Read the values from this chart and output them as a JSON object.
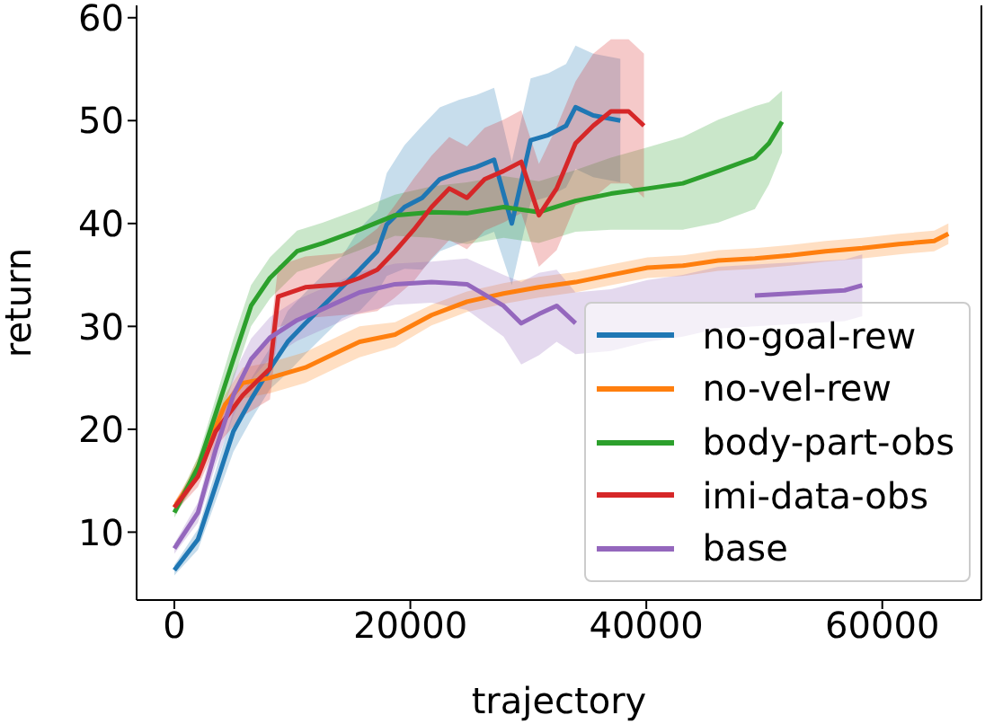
{
  "chart_data": {
    "type": "line",
    "xlabel": "trajectory",
    "ylabel": "return",
    "xlim": [
      -3200,
      68400
    ],
    "ylim": [
      3.4,
      61.2
    ],
    "xticks": [
      0,
      20000,
      40000,
      60000
    ],
    "yticks": [
      10,
      20,
      30,
      40,
      50,
      60
    ],
    "grid": false,
    "legend": "bottom right",
    "marker": "none",
    "line_style": "solid",
    "series": [
      {
        "name": "no-goal-rew",
        "color": "#1f77b4",
        "x": [
          0,
          2000,
          3500,
          5000,
          6500,
          8100,
          9600,
          11100,
          12600,
          14200,
          15700,
          17200,
          18000,
          19500,
          21000,
          22500,
          24100,
          25600,
          27100,
          28600,
          30200,
          31700,
          33200,
          34000,
          35500,
          37800
        ],
        "values": [
          6.3,
          9.3,
          14.5,
          19.8,
          22.9,
          25.9,
          28.5,
          30.3,
          32,
          33.8,
          35.5,
          37.3,
          39.9,
          41.6,
          42.5,
          44.3,
          45,
          45.5,
          46.2,
          40,
          48.1,
          48.6,
          49.5,
          51.3,
          50.5,
          50
        ],
        "lower": [
          5.8,
          8.3,
          13,
          17.8,
          20.9,
          23.9,
          25.5,
          27.3,
          29,
          30.8,
          31.5,
          33.3,
          34.9,
          35.6,
          35.5,
          37.3,
          38,
          38.5,
          39.2,
          34,
          42.1,
          42.6,
          43.5,
          45.3,
          44.5,
          44
        ],
        "upper": [
          6.8,
          10.3,
          16,
          21.8,
          24.9,
          27.9,
          31.5,
          33.3,
          35,
          36.8,
          39.5,
          41.3,
          44.9,
          47.6,
          49.5,
          51.3,
          52,
          52.5,
          53.2,
          46,
          54.1,
          54.6,
          55.5,
          57.3,
          56.5,
          56
        ]
      },
      {
        "name": "no-vel-rew",
        "color": "#ff7f0e",
        "x": [
          0,
          1200,
          2700,
          4300,
          5800,
          8100,
          11100,
          14200,
          15700,
          18700,
          21800,
          24800,
          27900,
          30900,
          34000,
          37000,
          40100,
          43100,
          46100,
          49200,
          52200,
          55200,
          58300,
          61400,
          64400,
          65600
        ],
        "values": [
          12.4,
          14.5,
          18,
          22.4,
          24.5,
          25,
          26,
          27.7,
          28.5,
          29.2,
          31.1,
          32.4,
          33.2,
          33.8,
          34.3,
          35,
          35.7,
          35.9,
          36.4,
          36.6,
          36.9,
          37.3,
          37.6,
          38,
          38.3,
          39
        ],
        "lower": [
          11.9,
          13.7,
          17,
          21.4,
          23,
          23.5,
          24.5,
          26.2,
          27,
          28,
          30.1,
          31.4,
          32.2,
          32.8,
          33.3,
          34,
          34.7,
          34.9,
          35.4,
          35.6,
          35.9,
          36.3,
          36.6,
          37,
          37.3,
          38
        ],
        "upper": [
          12.9,
          15.3,
          19,
          23.4,
          26,
          26.5,
          27.5,
          29.2,
          30,
          30.4,
          32.1,
          33.4,
          34.2,
          34.8,
          35.3,
          36,
          36.7,
          36.9,
          37.4,
          37.6,
          37.9,
          38.3,
          38.6,
          39,
          39.3,
          40
        ]
      },
      {
        "name": "body-part-obs",
        "color": "#2ca02c",
        "x": [
          0,
          2000,
          3500,
          5000,
          6500,
          8100,
          10400,
          12600,
          15700,
          18700,
          21800,
          24800,
          27900,
          30900,
          34000,
          37000,
          40100,
          43100,
          46100,
          49200,
          50400,
          51500
        ],
        "values": [
          11.9,
          16.3,
          21.5,
          26.8,
          32,
          34.7,
          37.3,
          38.1,
          39.4,
          40.8,
          41.1,
          41,
          41.6,
          41.1,
          42.2,
          42.9,
          43.4,
          43.9,
          45.1,
          46.4,
          47.8,
          49.9
        ],
        "lower": [
          11.4,
          15.3,
          20,
          24.8,
          30,
          32.7,
          35.3,
          36.1,
          37.4,
          38.8,
          38.6,
          38,
          38.6,
          38.1,
          39.2,
          39.4,
          39.4,
          39.4,
          40.1,
          41.4,
          43.8,
          46.9
        ],
        "upper": [
          12.4,
          17.3,
          23,
          28.8,
          34,
          36.7,
          39.3,
          40.1,
          41.4,
          42.8,
          43.6,
          44,
          44.6,
          44.1,
          45.2,
          46.4,
          47.4,
          48.4,
          50.1,
          51.4,
          51.8,
          52.9
        ]
      },
      {
        "name": "imi-data-obs",
        "color": "#d62728",
        "x": [
          0,
          2000,
          3500,
          5800,
          8100,
          8800,
          11100,
          14200,
          15700,
          17200,
          18700,
          20300,
          21800,
          23300,
          24800,
          26300,
          27900,
          29400,
          30900,
          32400,
          34000,
          35500,
          37000,
          38500,
          39800
        ],
        "values": [
          12.4,
          15.4,
          19.8,
          23.3,
          25.9,
          32.9,
          33.8,
          34.1,
          34.7,
          35.5,
          37.3,
          39.4,
          41.6,
          43.4,
          42.5,
          44.3,
          45.1,
          46,
          40.8,
          43.4,
          47.8,
          49.5,
          50.9,
          50.9,
          49.5
        ],
        "lower": [
          11.9,
          14.4,
          18.3,
          21.3,
          22.9,
          29.9,
          30.8,
          31.1,
          31.2,
          31.5,
          32.8,
          34.4,
          36.6,
          38.4,
          37.5,
          39.3,
          40.1,
          41,
          35.8,
          37.4,
          41.8,
          42.5,
          43.9,
          43.9,
          42.5
        ],
        "upper": [
          12.9,
          16.4,
          21.3,
          25.3,
          28.9,
          35.9,
          36.8,
          37.1,
          38.2,
          39.5,
          41.8,
          44.4,
          46.6,
          48.4,
          47.5,
          49.3,
          50.1,
          51,
          45.8,
          49.4,
          53.8,
          56.5,
          57.9,
          57.9,
          56.5
        ]
      },
      {
        "name": "base",
        "color": "#9467bd",
        "x": [
          0,
          2000,
          3500,
          5000,
          6500,
          8100,
          10400,
          12600,
          15700,
          18700,
          21800,
          24800,
          27900,
          29400,
          30900,
          32400,
          34000,
          37000,
          40100,
          43100,
          46100,
          49200,
          52200,
          56800,
          58300
        ],
        "values": [
          8.4,
          11.9,
          18,
          23.3,
          26.8,
          28.9,
          30.6,
          31.7,
          33.3,
          34.1,
          34.3,
          34.1,
          32,
          30.3,
          31.2,
          32,
          30.3,
          null,
          null,
          null,
          null,
          33,
          33.2,
          33.5,
          34
        ],
        "lower": [
          7.9,
          10.9,
          16.5,
          21.3,
          24.8,
          26.9,
          28.6,
          29.7,
          31.3,
          32.1,
          32.3,
          31.6,
          29,
          26.3,
          27.2,
          28.5,
          27.3,
          27.6,
          28.5,
          29,
          29.8,
          30,
          30.2,
          30.5,
          31
        ],
        "upper": [
          8.9,
          12.9,
          19.5,
          25.3,
          28.8,
          30.9,
          32.6,
          33.7,
          35.3,
          36.1,
          36.3,
          36.6,
          35,
          34.3,
          35.2,
          35.5,
          33.3,
          33.6,
          34.5,
          35,
          35.8,
          36,
          36.2,
          36.5,
          37
        ]
      }
    ]
  }
}
